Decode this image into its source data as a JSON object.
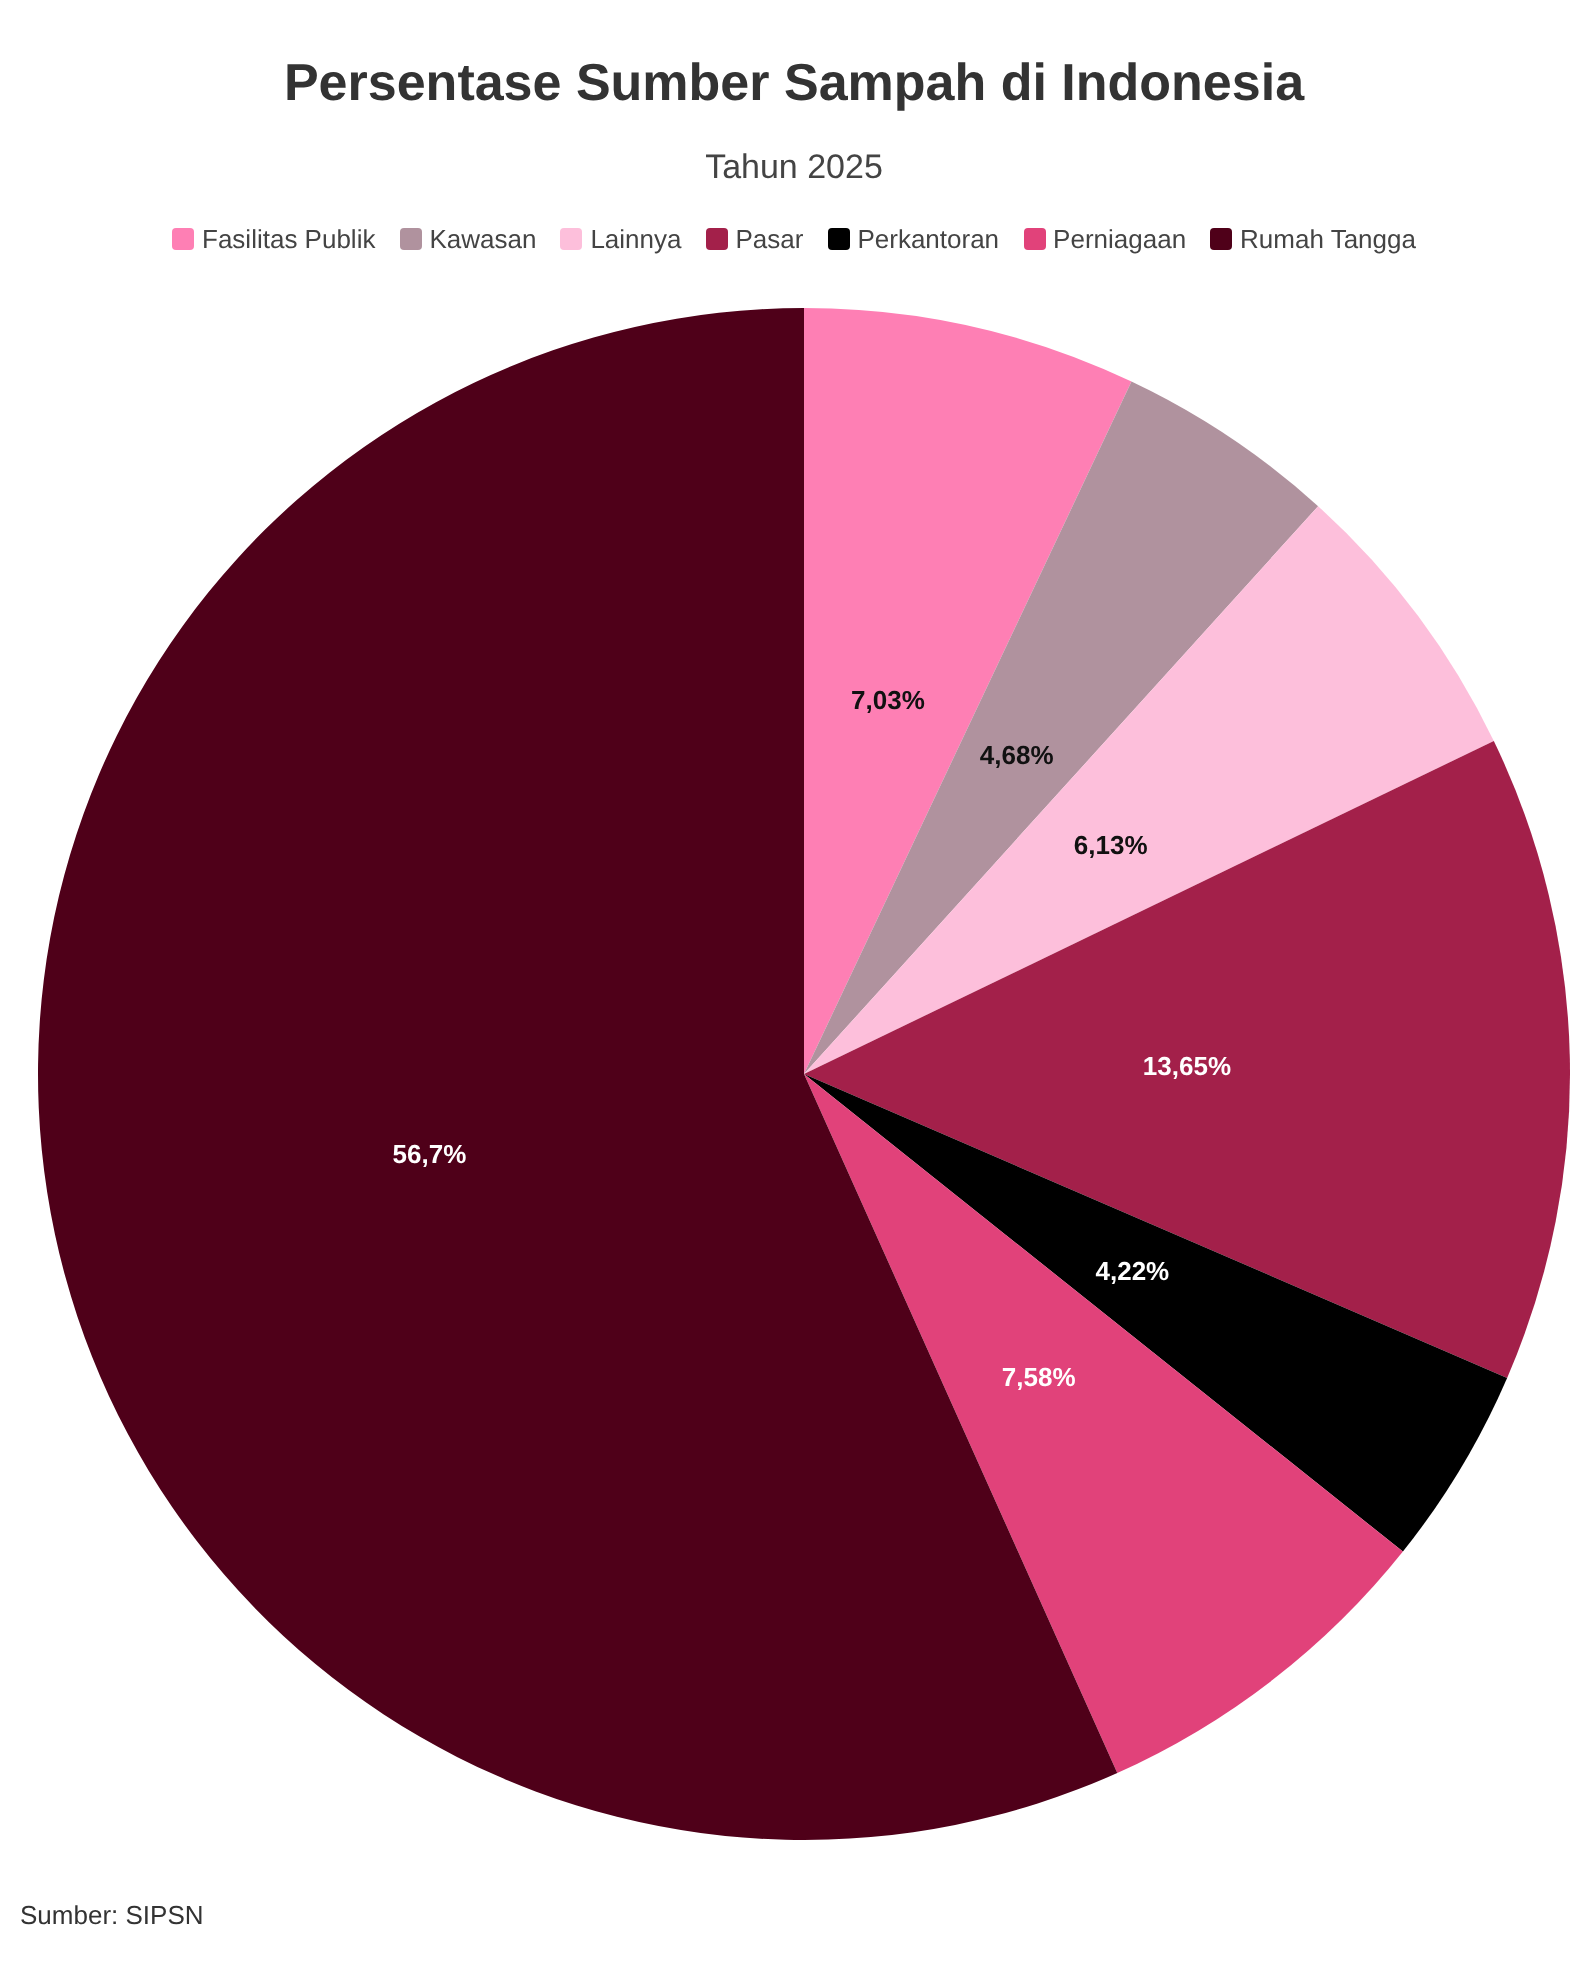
{
  "chart_data": {
    "type": "pie",
    "title": "Persentase Sumber Sampah di Indonesia",
    "subtitle": "Tahun 2025",
    "categories": [
      "Fasilitas Publik",
      "Kawasan",
      "Lainnya",
      "Pasar",
      "Perkantoran",
      "Perniagaan",
      "Rumah Tangga"
    ],
    "values": [
      7.03,
      4.68,
      6.13,
      13.65,
      4.22,
      7.58,
      56.7
    ],
    "colors": [
      "#fe7fb4",
      "#b0929e",
      "#fdbfdb",
      "#a3204a",
      "#000000",
      "#e1427a",
      "#4f0019"
    ],
    "value_labels": [
      "7,03%",
      "4,68%",
      "6,13%",
      "13,65%",
      "4,22%",
      "7,58%",
      "56,7%"
    ],
    "legend": "top",
    "annotations": [
      "Sumber: SIPSN"
    ]
  }
}
